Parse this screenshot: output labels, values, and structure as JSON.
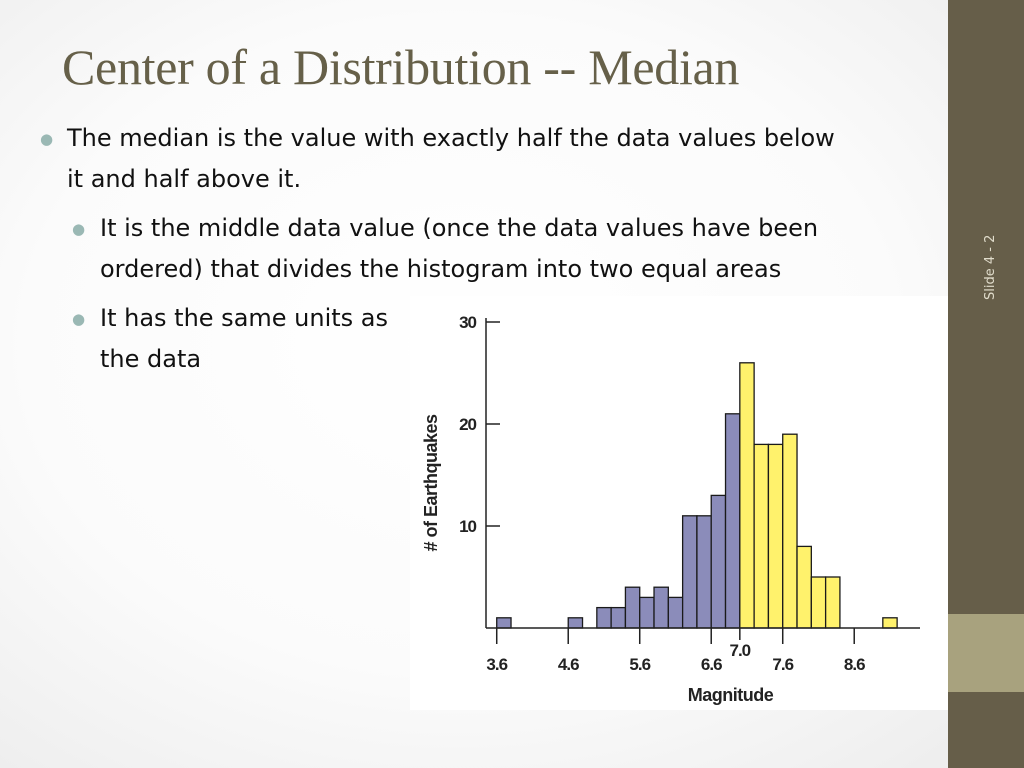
{
  "slide": {
    "title": "Center of a Distribution -- Median",
    "bullets": {
      "main": "The median is the value with exactly half the data values below it and half above it.",
      "sub1": "It is the middle data value (once the data  values have been ordered) that divides the histogram into two equal areas",
      "sub2": "It has the same units as the data"
    },
    "slide_number": "Slide 4 - 2"
  },
  "colors": {
    "title": "#666049",
    "bullet": "#9ab8b4",
    "sidebar": "#665e49",
    "sidebar_band": "#a8a27e",
    "below_median": "#8b8cba",
    "above_median": "#fff26c"
  },
  "chart_data": {
    "type": "bar",
    "xlabel": "Magnitude",
    "ylabel": "# of Earthquakes",
    "median": 7.0,
    "median_label": "7.0",
    "bin_width": 0.2,
    "bins": [
      {
        "start": 3.6,
        "count": 1,
        "group": "below"
      },
      {
        "start": 4.6,
        "count": 1,
        "group": "below"
      },
      {
        "start": 5.0,
        "count": 2,
        "group": "below"
      },
      {
        "start": 5.2,
        "count": 2,
        "group": "below"
      },
      {
        "start": 5.4,
        "count": 4,
        "group": "below"
      },
      {
        "start": 5.6,
        "count": 3,
        "group": "below"
      },
      {
        "start": 5.8,
        "count": 4,
        "group": "below"
      },
      {
        "start": 6.0,
        "count": 3,
        "group": "below"
      },
      {
        "start": 6.2,
        "count": 11,
        "group": "below"
      },
      {
        "start": 6.4,
        "count": 11,
        "group": "below"
      },
      {
        "start": 6.6,
        "count": 13,
        "group": "below"
      },
      {
        "start": 6.8,
        "count": 21,
        "group": "below"
      },
      {
        "start": 7.0,
        "count": 26,
        "group": "above"
      },
      {
        "start": 7.2,
        "count": 18,
        "group": "above"
      },
      {
        "start": 7.4,
        "count": 18,
        "group": "above"
      },
      {
        "start": 7.6,
        "count": 19,
        "group": "above"
      },
      {
        "start": 7.8,
        "count": 8,
        "group": "above"
      },
      {
        "start": 8.0,
        "count": 5,
        "group": "above"
      },
      {
        "start": 8.2,
        "count": 5,
        "group": "above"
      },
      {
        "start": 9.0,
        "count": 1,
        "group": "above"
      }
    ],
    "x_ticks": [
      3.6,
      4.6,
      5.6,
      6.6,
      7.6,
      8.6
    ],
    "x_tick_labels": [
      "3.6",
      "4.6",
      "5.6",
      "6.6",
      "7.6",
      "8.6"
    ],
    "y_ticks": [
      10,
      20,
      30
    ],
    "y_tick_labels": [
      "10",
      "20",
      "30"
    ],
    "xlim": [
      3.45,
      9.45
    ],
    "ylim": [
      0,
      30
    ],
    "grid": false
  }
}
